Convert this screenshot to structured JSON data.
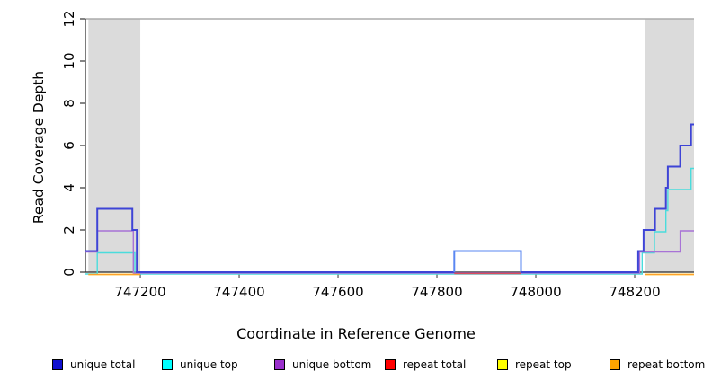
{
  "figure": {
    "xlabel": "Coordinate in Reference Genome",
    "ylabel": "Read Coverage Depth"
  },
  "legend": {
    "items": [
      {
        "label": "unique total",
        "color": "#1010D0"
      },
      {
        "label": "unique top",
        "color": "#00FFFF"
      },
      {
        "label": "unique bottom",
        "color": "#9A30CC"
      },
      {
        "label": "repeat total",
        "color": "#FF0000"
      },
      {
        "label": "repeat top",
        "color": "#FFFF00"
      },
      {
        "label": "repeat bottom",
        "color": "#FFA500"
      }
    ]
  },
  "chart_data": {
    "type": "line",
    "subtype": "step-after-coverage",
    "title": "",
    "xlabel": "Coordinate in Reference Genome",
    "ylabel": "Read Coverage Depth",
    "xlim": [
      747089,
      748320
    ],
    "ylim": [
      0,
      12
    ],
    "x_ticks": [
      747200,
      747400,
      747600,
      747800,
      748000,
      748200
    ],
    "y_ticks": [
      0,
      2,
      4,
      6,
      8,
      10,
      12
    ],
    "grid": false,
    "repeat_regions": {
      "fill": "#DBDBDB",
      "top_line_color": "#ABABAB",
      "spans": [
        [
          747095,
          747200
        ],
        [
          748220,
          748320
        ]
      ]
    },
    "series": [
      {
        "name": "repeat top",
        "color": "#FFE800",
        "width": 1.4,
        "offset": 2.5,
        "segments": [
          [
            [
              747095,
              0
            ],
            [
              747200,
              0
            ]
          ],
          [
            [
              748220,
              0
            ],
            [
              748320,
              0
            ]
          ]
        ]
      },
      {
        "name": "unique top",
        "color": "#4ADCDC",
        "width": 1.4,
        "offset": 2,
        "segments": [
          [
            [
              747089,
              0
            ],
            [
              747113,
              1
            ],
            [
              747189,
              0
            ],
            [
              748215,
              1
            ],
            [
              748240,
              2
            ],
            [
              748263,
              3
            ],
            [
              748267,
              4
            ],
            [
              748314,
              5
            ],
            [
              748320,
              5
            ]
          ]
        ]
      },
      {
        "name": "unique bottom",
        "color": "#A873D6",
        "width": 1.4,
        "offset": 1,
        "segments": [
          [
            [
              747089,
              1
            ],
            [
              747113,
              2
            ],
            [
              747186,
              0
            ],
            [
              748210,
              1
            ],
            [
              748292,
              2
            ],
            [
              748320,
              2
            ]
          ]
        ]
      },
      {
        "name": "repeat total",
        "color": "#DC4C5C",
        "width": 1.4,
        "offset": 1.5,
        "segments": [
          [
            [
              747835,
              0
            ],
            [
              747970,
              0
            ]
          ]
        ]
      },
      {
        "name": "repeat bottom",
        "color": "#FFA127",
        "width": 1.6,
        "offset": 2.5,
        "segments": [
          [
            [
              747095,
              0
            ],
            [
              747200,
              0
            ]
          ],
          [
            [
              748220,
              0
            ],
            [
              748320,
              0
            ]
          ]
        ]
      },
      {
        "name": "unique total",
        "color": "#3E44D6",
        "width": 2,
        "offset": 0,
        "segments": [
          [
            [
              747089,
              1
            ],
            [
              747113,
              3
            ],
            [
              747184,
              2
            ],
            [
              747193,
              0
            ],
            [
              747835,
              0
            ]
          ],
          {
            "color": "#5A87F2",
            "points": [
              [
                747835,
                0
              ],
              [
                747835,
                1
              ],
              [
                747970,
                1
              ],
              [
                747970,
                0
              ]
            ]
          },
          [
            [
              747970,
              0
            ],
            [
              748207,
              1
            ],
            [
              748218,
              2
            ],
            [
              748241,
              3
            ],
            [
              748263,
              4
            ],
            [
              748267,
              5
            ],
            [
              748292,
              6
            ],
            [
              748314,
              7
            ],
            [
              748320,
              7
            ]
          ]
        ]
      }
    ]
  }
}
